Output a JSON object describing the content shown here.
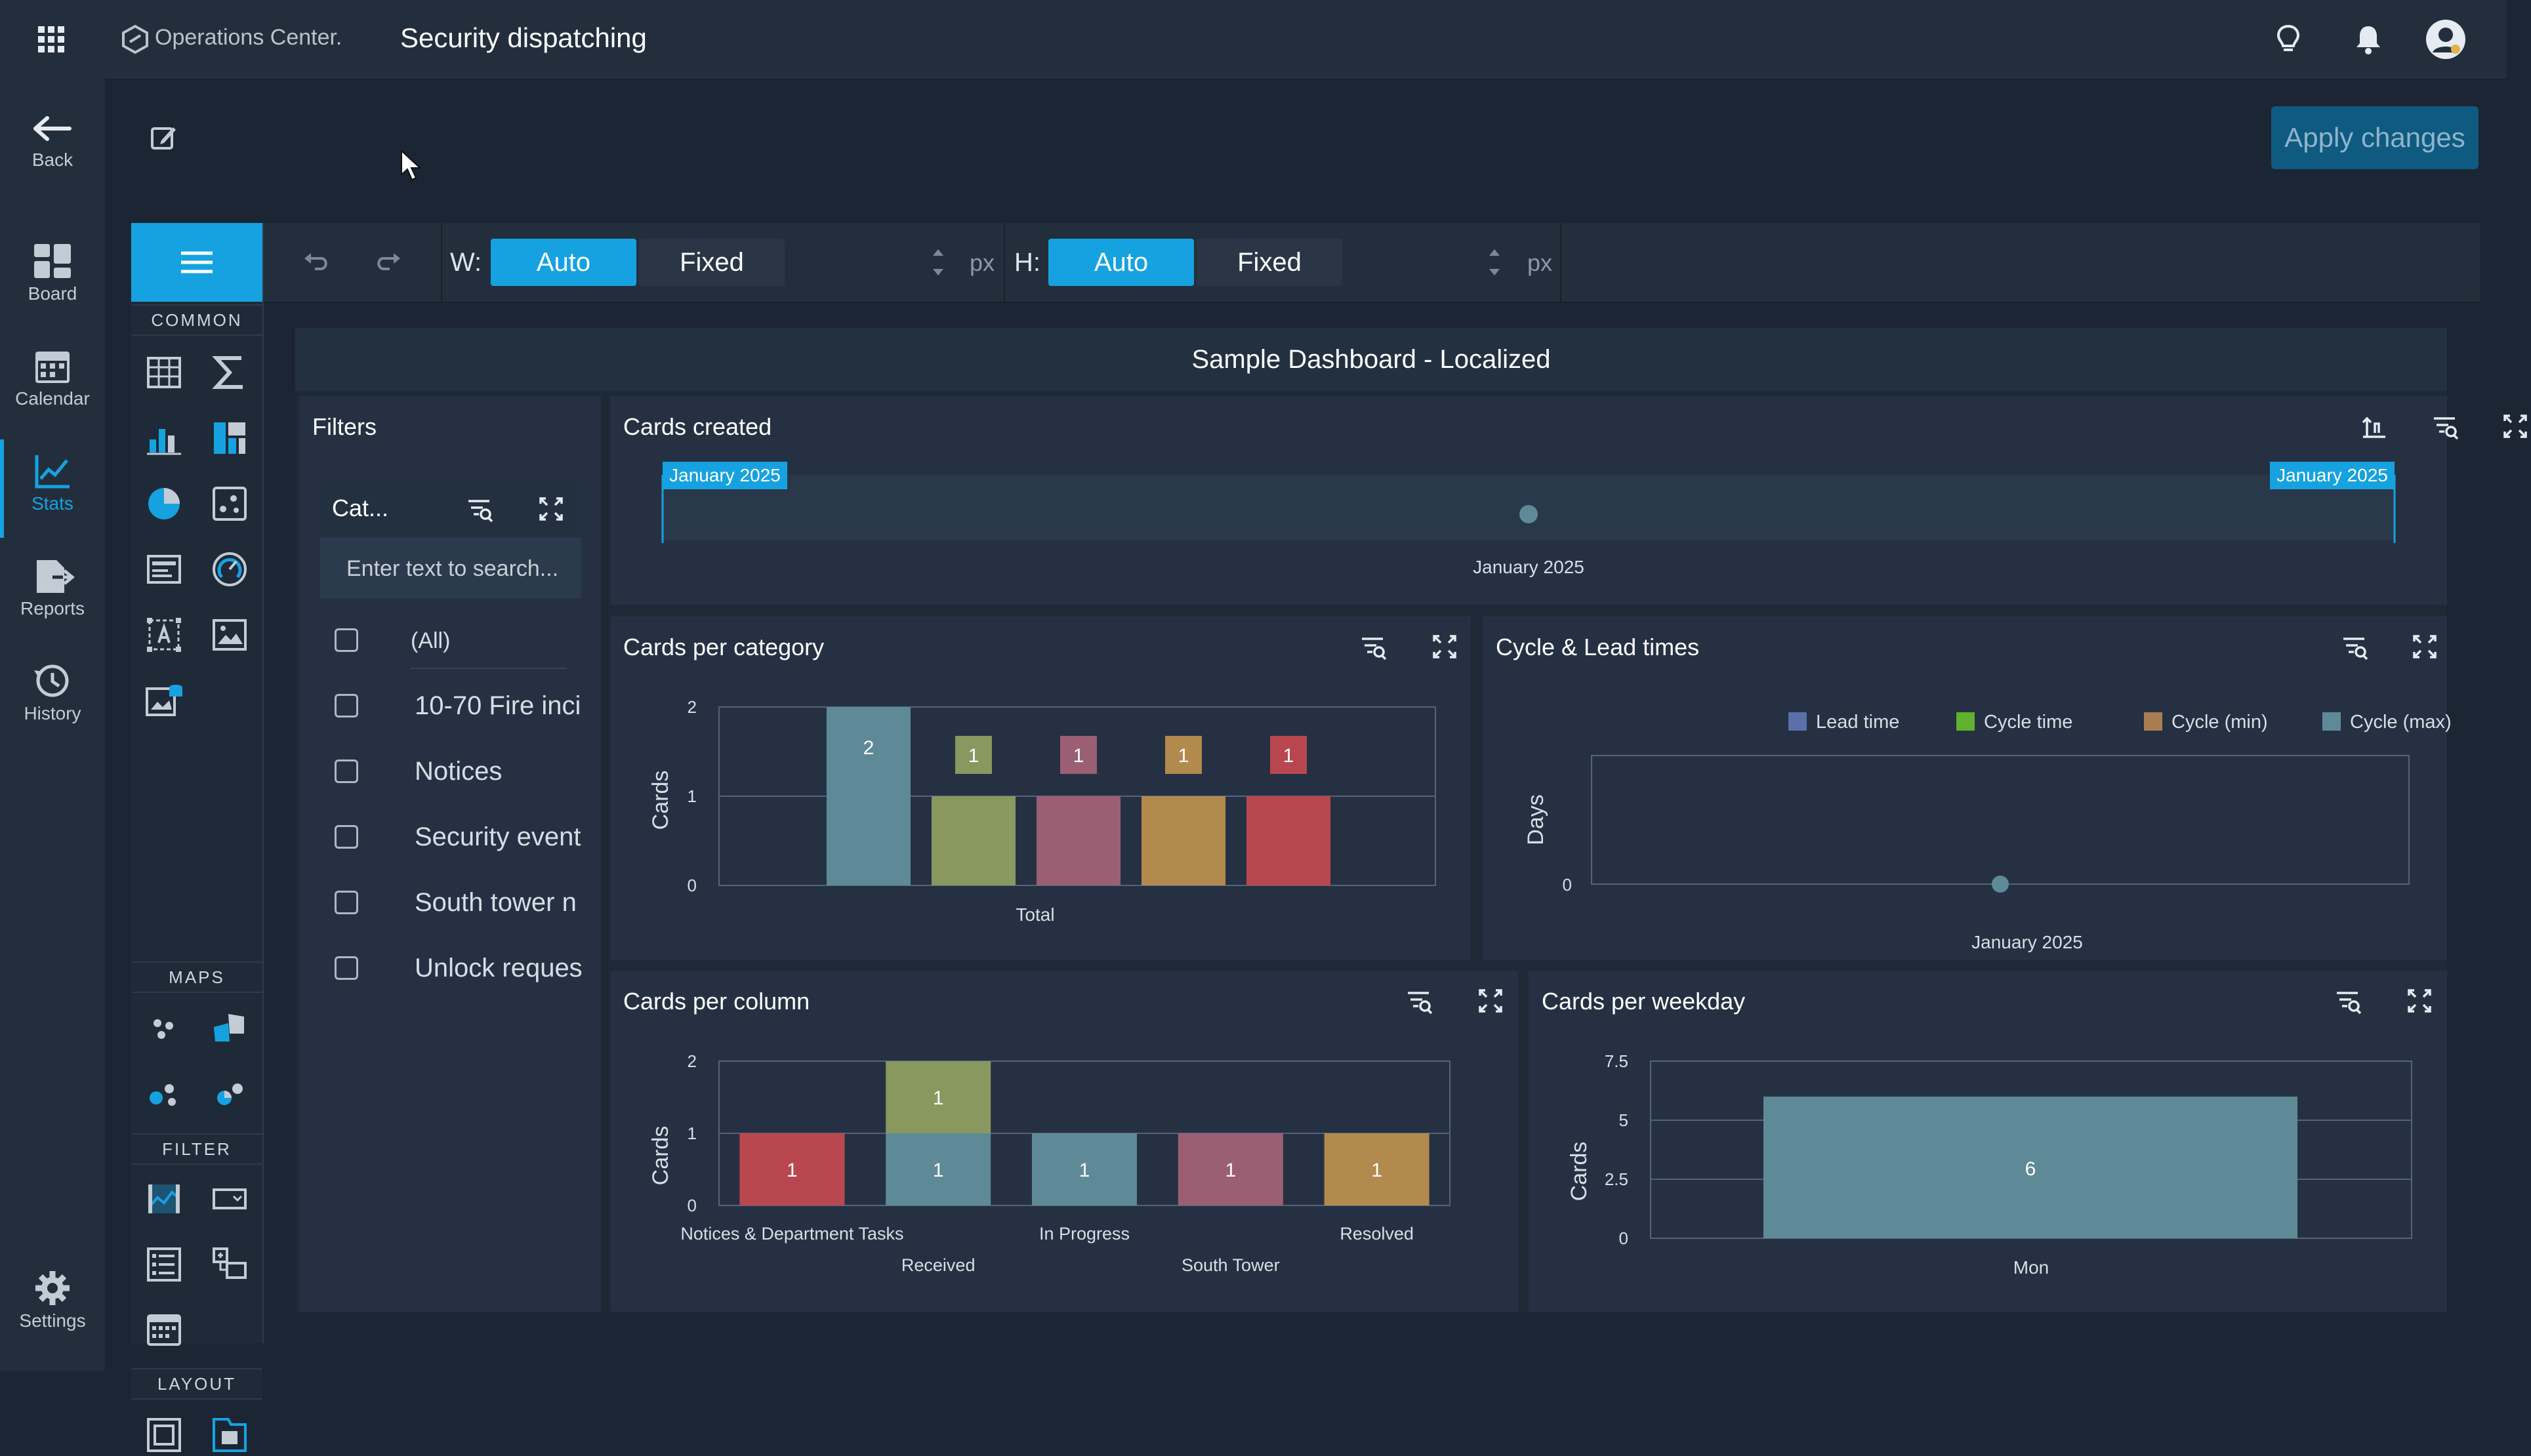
{
  "app": {
    "logo_text": "Operations Center.",
    "page_title": "Security dispatching"
  },
  "nav": {
    "items": [
      {
        "label": "Back",
        "icon": "arrow-left-icon"
      },
      {
        "label": "Board",
        "icon": "board-icon"
      },
      {
        "label": "Calendar",
        "icon": "calendar-icon"
      },
      {
        "label": "Stats",
        "icon": "stats-icon",
        "active": true
      },
      {
        "label": "Reports",
        "icon": "reports-icon"
      },
      {
        "label": "History",
        "icon": "history-icon"
      },
      {
        "label": "Settings",
        "icon": "gear-icon"
      }
    ]
  },
  "editor": {
    "apply_label": "Apply changes"
  },
  "palette": {
    "sections": [
      "COMMON",
      "MAPS",
      "FILTER",
      "LAYOUT"
    ]
  },
  "toolbar": {
    "width_label": "W:",
    "height_label": "H:",
    "auto_label": "Auto",
    "fixed_label": "Fixed",
    "unit": "px",
    "width_mode": "Auto",
    "height_mode": "Auto"
  },
  "dashboard": {
    "title": "Sample Dashboard - Localized",
    "filters": {
      "title": "Filters",
      "field": "Cat...",
      "search_placeholder": "Enter text to search...",
      "options": [
        "(All)",
        "10-70 Fire inci",
        "Notices",
        "Security event",
        "South tower n",
        "Unlock reques"
      ]
    },
    "panels": {
      "cards_created": "Cards created",
      "cards_per_category": "Cards per category",
      "cycle_lead": "Cycle & Lead times",
      "cards_per_column": "Cards per column",
      "cards_per_weekday": "Cards per weekday"
    }
  },
  "chart_data": [
    {
      "id": "cards_created",
      "type": "scatter",
      "title": "Cards created",
      "x": [
        "January 2025"
      ],
      "range_start": "January 2025",
      "range_end": "January 2025",
      "series": [
        {
          "values": [
            1
          ],
          "color": "#5e8a97"
        }
      ]
    },
    {
      "id": "cards_per_category",
      "type": "bar",
      "title": "Cards per category",
      "categories": [
        "Total"
      ],
      "ylabel": "Cards",
      "ylim": [
        0,
        2
      ],
      "yticks": [
        0,
        1,
        2
      ],
      "bars": [
        {
          "value": 2,
          "color": "#5e8a97"
        },
        {
          "value": 1,
          "color": "#88985e"
        },
        {
          "value": 1,
          "color": "#9a5f73"
        },
        {
          "value": 1,
          "color": "#b38a4e"
        },
        {
          "value": 1,
          "color": "#b9474f"
        }
      ]
    },
    {
      "id": "cycle_lead",
      "type": "scatter",
      "title": "Cycle & Lead times",
      "ylabel": "Days",
      "x": [
        "January 2025"
      ],
      "yticks": [
        0
      ],
      "legend": [
        {
          "name": "Lead time",
          "color": "#5b6fa8"
        },
        {
          "name": "Cycle time",
          "color": "#5fb12f"
        },
        {
          "name": "Cycle (min)",
          "color": "#a87d52"
        },
        {
          "name": "Cycle (max)",
          "color": "#5e8a97"
        }
      ],
      "points": [
        0
      ]
    },
    {
      "id": "cards_per_column",
      "type": "bar",
      "title": "Cards per column",
      "ylabel": "Cards",
      "ylim": [
        0,
        2
      ],
      "yticks": [
        0,
        1,
        2
      ],
      "categories": [
        "Notices & Department Tasks",
        "Received",
        "In Progress",
        "South Tower",
        "Resolved"
      ],
      "stacks": [
        [
          {
            "value": 1,
            "color": "#b9474f"
          }
        ],
        [
          {
            "value": 1,
            "color": "#5e8a97"
          },
          {
            "value": 1,
            "color": "#88985e"
          }
        ],
        [
          {
            "value": 1,
            "color": "#5e8a97"
          }
        ],
        [
          {
            "value": 1,
            "color": "#9a5f73"
          }
        ],
        [
          {
            "value": 1,
            "color": "#b38a4e"
          }
        ]
      ]
    },
    {
      "id": "cards_per_weekday",
      "type": "bar",
      "title": "Cards per weekday",
      "ylabel": "Cards",
      "ylim": [
        0,
        7.5
      ],
      "yticks": [
        0,
        2.5,
        5,
        7.5
      ],
      "categories": [
        "Mon"
      ],
      "values": [
        6
      ],
      "color": "#5e8a97"
    }
  ]
}
